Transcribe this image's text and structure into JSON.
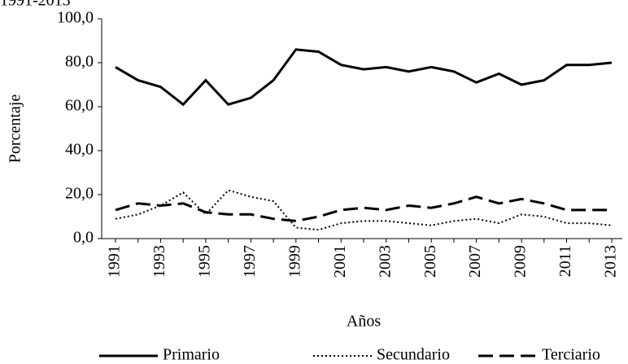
{
  "chart_data": {
    "type": "line",
    "subtitle": "1991-2013",
    "ylabel": "Porcentaje",
    "xlabel": "Años",
    "categories": [
      "1991",
      null,
      "1993",
      null,
      "1995",
      null,
      "1997",
      null,
      "1999",
      null,
      "2001",
      null,
      "2003",
      null,
      "2005",
      null,
      "2007",
      null,
      "2009",
      null,
      "2011",
      null,
      "2013"
    ],
    "ylim": [
      0,
      100
    ],
    "yticks": [
      {
        "value": 0,
        "label": "0,0"
      },
      {
        "value": 20,
        "label": "20,0"
      },
      {
        "value": 40,
        "label": "40,0"
      },
      {
        "value": 60,
        "label": "60,0"
      },
      {
        "value": 80,
        "label": "80,0"
      },
      {
        "value": 100,
        "label": "100,0"
      }
    ],
    "grid": false,
    "legend": "bottom",
    "series": [
      {
        "name": "Primario",
        "color": "#000000",
        "style": "solid",
        "values": [
          78,
          72,
          69,
          61,
          72,
          61,
          64,
          72,
          86,
          85,
          79,
          77,
          78,
          76,
          78,
          76,
          71,
          75,
          70,
          72,
          79,
          79,
          80
        ]
      },
      {
        "name": "Secundario",
        "color": "#000000",
        "style": "dotted",
        "values": [
          9,
          11,
          15,
          21,
          11,
          22,
          19,
          17,
          5,
          4,
          7,
          8,
          8,
          7,
          6,
          8,
          9,
          7,
          11,
          10,
          7,
          7,
          6
        ]
      },
      {
        "name": "Terciario",
        "color": "#000000",
        "style": "dashed",
        "values": [
          13,
          16,
          15,
          16,
          12,
          11,
          11,
          9,
          8,
          10,
          13,
          14,
          13,
          15,
          14,
          16,
          19,
          16,
          18,
          16,
          13,
          13,
          13
        ]
      }
    ]
  }
}
